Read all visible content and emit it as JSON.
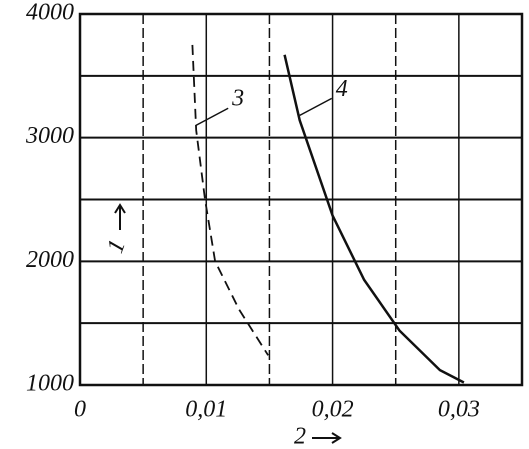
{
  "chart_data": {
    "type": "line",
    "x_label": "2",
    "y_label": "1",
    "xlim": [
      0,
      0.035
    ],
    "ylim": [
      1000,
      4000
    ],
    "xticks": [
      0,
      {
        "value": 0.01,
        "label": "0,01"
      },
      {
        "value": 0.02,
        "label": "0,02"
      },
      {
        "value": 0.03,
        "label": "0,03"
      }
    ],
    "minor_xticks": [
      0.005,
      0.015,
      0.025
    ],
    "yticks": [
      1000,
      2000,
      3000,
      4000
    ],
    "minor_yticks": [
      1500,
      2500,
      3500
    ],
    "grid": true,
    "series": [
      {
        "name": "3",
        "color": "#111111",
        "dashed": true,
        "x": [
          0.0089,
          0.0092,
          0.0099,
          0.0107,
          0.0126,
          0.0149
        ],
        "values": [
          3750,
          3060,
          2500,
          2000,
          1610,
          1240
        ]
      },
      {
        "name": "4",
        "color": "#111111",
        "dashed": false,
        "x": [
          0.0162,
          0.0174,
          0.02,
          0.0225,
          0.0253,
          0.0285,
          0.0304
        ],
        "values": [
          3670,
          3140,
          2370,
          1850,
          1440,
          1120,
          1020
        ]
      }
    ]
  }
}
